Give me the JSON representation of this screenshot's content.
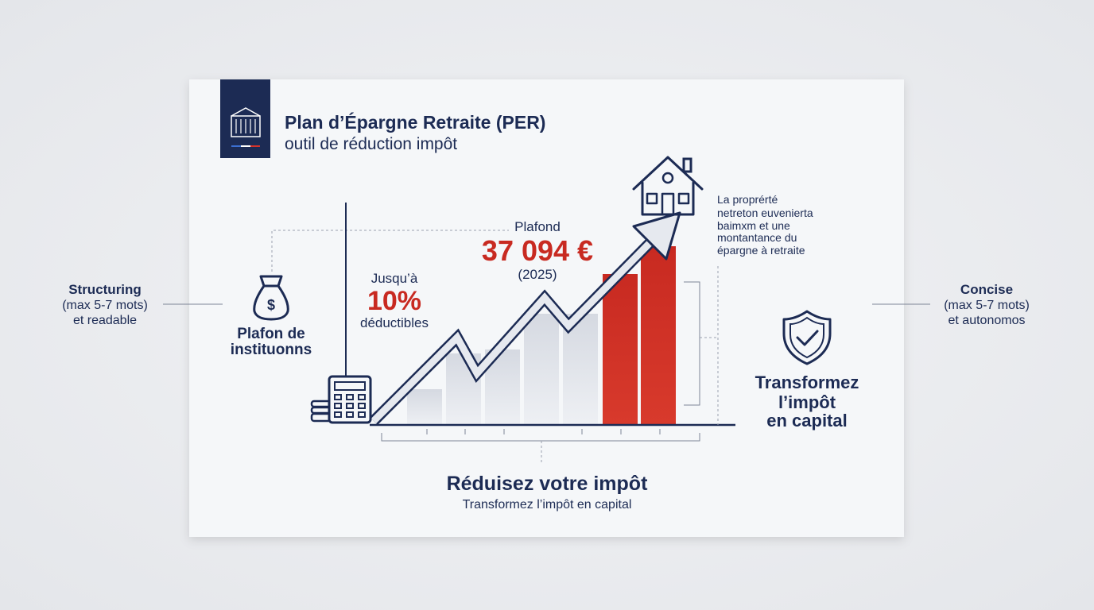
{
  "header": {
    "title": "Plan d’Épargne Retraite (PER)",
    "subtitle": "outil de réduction impôt"
  },
  "left_note": {
    "lines": [
      "Structuring",
      "(max 5-7 mots)",
      "et readable"
    ]
  },
  "right_note": {
    "lines": [
      "Concise",
      "(max 5-7 mots)",
      "et autonomos"
    ]
  },
  "plafond": {
    "label": "Plafond",
    "amount": "37 094 €",
    "year": "(2025)"
  },
  "deduction": {
    "prefix": "Jusqu’à",
    "rate": "10%",
    "suffix": "déductibles"
  },
  "money_bag": {
    "lines": [
      "Plafon de",
      "instituonns"
    ]
  },
  "house_note": {
    "lines": [
      "La proprérté",
      "netreton euvenierta",
      "baimxm et une",
      "montantance du",
      "épargne à retraite"
    ]
  },
  "shield": {
    "lines": [
      "Transformez",
      "l’impôt",
      "en capital"
    ]
  },
  "footer": {
    "title": "Réduisez votre impôt",
    "subtitle": "Transformez l’impôt en capital"
  }
}
